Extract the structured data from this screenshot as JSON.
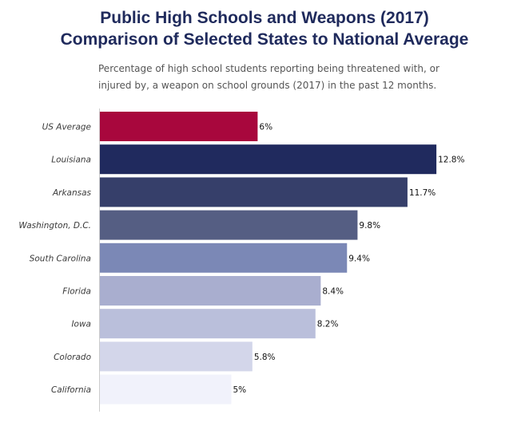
{
  "header": {
    "title_line1": "Public High Schools and Weapons (2017)",
    "title_line2": "Comparison of Selected States to National Average",
    "subtitle_line1": "Percentage of high school students reporting being threatened with, or",
    "subtitle_line2": "injured by, a weapon on school grounds (2017) in the past 12 months."
  },
  "chart_data": {
    "type": "bar",
    "orientation": "horizontal",
    "categories": [
      "US Average",
      "Louisiana",
      "Arkansas",
      "Washington, D.C.",
      "South Carolina",
      "Florida",
      "Iowa",
      "Colorado",
      "California"
    ],
    "values": [
      6,
      12.8,
      11.7,
      9.8,
      9.4,
      8.4,
      8.2,
      5.8,
      5
    ],
    "value_labels": [
      "6%",
      "12.8%",
      "11.7%",
      "9.8%",
      "9.4%",
      "8.4%",
      "8.2%",
      "5.8%",
      "5%"
    ],
    "colors": [
      "#a8073d",
      "#202a5e",
      "#363f6a",
      "#555e83",
      "#7b88b6",
      "#a9aecf",
      "#babfdb",
      "#d3d6ea",
      "#f1f2fb"
    ],
    "xlim": [
      0,
      13
    ],
    "grid": false,
    "legend": "none"
  }
}
